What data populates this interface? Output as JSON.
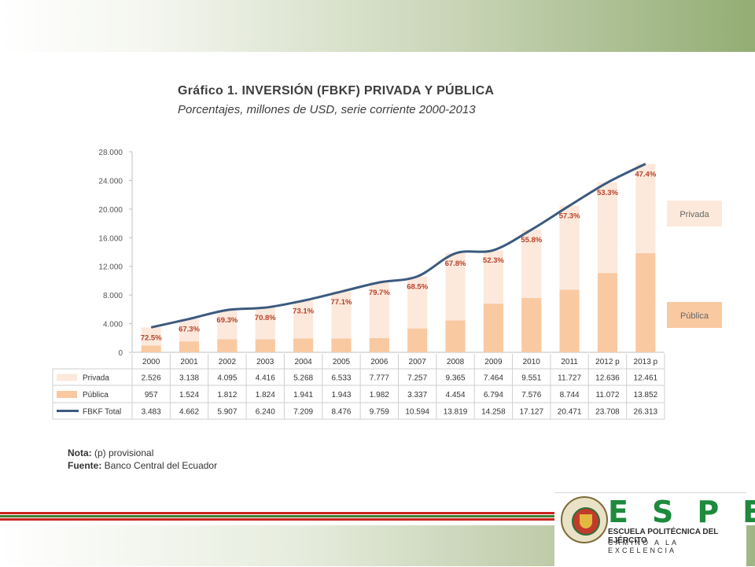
{
  "slide": {
    "title": "Gráfico 1. INVERSIÓN (FBKF) PRIVADA Y PÚBLICA",
    "subtitle": "Porcentajes, millones de USD, serie corriente 2000-2013",
    "note_label": "Nota:",
    "note_text": " (p) provisional",
    "source_label": "Fuente:",
    "source_text": " Banco Central del Ecuador"
  },
  "logo": {
    "letters": "ESPE",
    "line1": "ESCUELA POLITÉCNICA DEL EJÉRCITO",
    "line2": "CAMINO A LA EXCELENCIA"
  },
  "colors": {
    "privada": "#fce9dc",
    "publica": "#f9c9a2",
    "line": "#3b5a7e",
    "grid": "#d9d9d9",
    "label_text": "#b8412a",
    "stripe_red": "#c8261e",
    "stripe_green": "#3f7f33",
    "brand_green": "#1e8a3c"
  },
  "chart_data": {
    "type": "bar",
    "stacked": true,
    "categories": [
      "2000",
      "2001",
      "2002",
      "2003",
      "2004",
      "2005",
      "2006",
      "2007",
      "2008",
      "2009",
      "2010",
      "2011",
      "2012 p",
      "2013 p"
    ],
    "series": [
      {
        "name": "Privada",
        "values": [
          2526,
          3138,
          4095,
          4416,
          5268,
          6533,
          7777,
          7257,
          9365,
          7464,
          9551,
          11727,
          12636,
          12461
        ],
        "display": [
          "2.526",
          "3.138",
          "4.095",
          "4.416",
          "5.268",
          "6.533",
          "7.777",
          "7.257",
          "9.365",
          "7.464",
          "9.551",
          "11.727",
          "12.636",
          "12.461"
        ]
      },
      {
        "name": "Pública",
        "values": [
          957,
          1524,
          1812,
          1824,
          1941,
          1943,
          1982,
          3337,
          4454,
          6794,
          7576,
          8744,
          11072,
          13852
        ],
        "display": [
          "957",
          "1.524",
          "1.812",
          "1.824",
          "1.941",
          "1.943",
          "1.982",
          "3.337",
          "4.454",
          "6.794",
          "7.576",
          "8.744",
          "11.072",
          "13.852"
        ]
      },
      {
        "name": "FBKF Total",
        "type": "line",
        "values": [
          3483,
          4662,
          5907,
          6240,
          7209,
          8476,
          9759,
          10594,
          13819,
          14258,
          17127,
          20471,
          23708,
          26313
        ],
        "display": [
          "3.483",
          "4.662",
          "5.907",
          "6.240",
          "7.209",
          "8.476",
          "9.759",
          "10.594",
          "13.819",
          "14.258",
          "17.127",
          "20.471",
          "23.708",
          "26.313"
        ]
      }
    ],
    "percent_labels": [
      "72.5%",
      "67.3%",
      "69.3%",
      "70.8%",
      "73.1%",
      "77.1%",
      "79.7%",
      "68.5%",
      "67.8%",
      "52.3%",
      "55.8%",
      "57.3%",
      "53.3%",
      "47.4%"
    ],
    "yticks": [
      "28.000",
      "24.000",
      "20.000",
      "16.000",
      "12.000",
      "8.000",
      "4.000",
      "0"
    ],
    "ylim": [
      0,
      28000
    ],
    "legend": [
      "Privada",
      "Pública"
    ],
    "grid": false
  }
}
